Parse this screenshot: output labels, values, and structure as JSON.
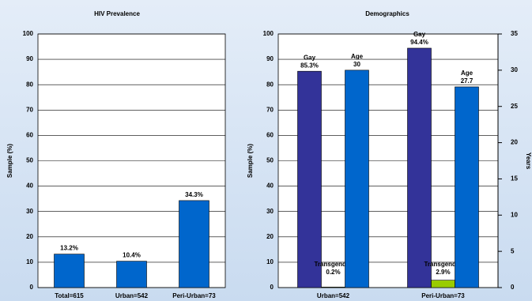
{
  "chart_data": [
    {
      "type": "bar",
      "title": "HIV Prevalence",
      "ylabel": "Sample (%)",
      "categories": [
        "Total=615",
        "Urban=542",
        "Peri-Urban=73"
      ],
      "values": [
        13.2,
        10.4,
        34.3
      ],
      "value_labels": [
        "13.2%",
        "10.4%",
        "34.3%"
      ],
      "color": "#0066cc",
      "ylim": [
        0,
        100
      ],
      "yticks": [
        0,
        10,
        20,
        30,
        40,
        50,
        60,
        70,
        80,
        90,
        100
      ],
      "grid": true
    },
    {
      "type": "grouped_bar",
      "title": "Demographics",
      "ylabel": "Sample (%)",
      "y2label": "Years",
      "categories": [
        "Urban=542",
        "Peri-Urban=73"
      ],
      "series": [
        {
          "name": "Gay",
          "color": "#333399",
          "values": [
            85.3,
            94.4
          ],
          "value_labels": [
            "85.3%",
            "94.4%"
          ]
        },
        {
          "name": "Transgender",
          "color": "#99cc00",
          "values": [
            0.2,
            2.9
          ],
          "value_labels": [
            "0.2%",
            "2.9%"
          ]
        },
        {
          "name": "Age",
          "color": "#0066cc",
          "axis": "y2",
          "values": [
            30,
            27.7
          ]
        }
      ],
      "ylim": [
        0,
        100
      ],
      "yticks": [
        0,
        10,
        20,
        30,
        40,
        50,
        60,
        70,
        80,
        90,
        100
      ],
      "y2lim": [
        0,
        35
      ],
      "y2ticks": [
        0,
        5,
        10,
        15,
        20,
        25,
        30,
        35
      ],
      "grid": true
    }
  ]
}
